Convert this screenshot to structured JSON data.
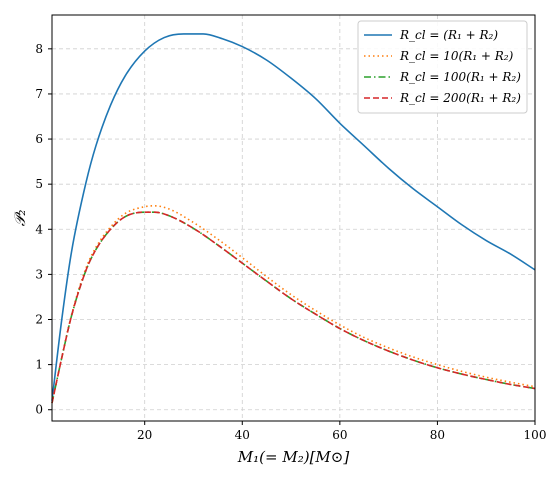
{
  "chart_data": {
    "type": "line",
    "xlabel": "M₁(= M₂)[M⊙]",
    "ylabel": "𝒫₂",
    "xlim": [
      1,
      100
    ],
    "ylim": [
      -0.25,
      8.75
    ],
    "xticks": [
      20,
      40,
      60,
      80,
      100
    ],
    "yticks": [
      0,
      1,
      2,
      3,
      4,
      5,
      6,
      7,
      8
    ],
    "grid": true,
    "grid_style": "dashed",
    "legend_position": "top-right",
    "series": [
      {
        "name": "R_cl = (R₁ + R₂)",
        "color": "#1f77b4",
        "dash": "solid",
        "x": [
          1,
          3,
          5,
          8,
          10,
          13,
          16,
          20,
          24,
          28,
          32,
          36,
          40,
          45,
          50,
          55,
          60,
          65,
          70,
          75,
          80,
          85,
          90,
          95,
          100
        ],
        "y": [
          0.2,
          2.0,
          3.5,
          5.05,
          5.85,
          6.75,
          7.4,
          7.95,
          8.25,
          8.33,
          8.33,
          8.22,
          8.05,
          7.75,
          7.35,
          6.9,
          6.35,
          5.85,
          5.35,
          4.9,
          4.5,
          4.1,
          3.75,
          3.45,
          3.1
        ]
      },
      {
        "name": "R_cl = 10(R₁ + R₂)",
        "color": "#ff7f0e",
        "dash": "dotted",
        "x": [
          1,
          3,
          5,
          8,
          10,
          13,
          16,
          20,
          22,
          25,
          30,
          35,
          40,
          45,
          50,
          55,
          60,
          65,
          70,
          75,
          80,
          85,
          90,
          95,
          100
        ],
        "y": [
          0.15,
          1.15,
          2.1,
          3.15,
          3.6,
          4.05,
          4.35,
          4.5,
          4.52,
          4.45,
          4.15,
          3.78,
          3.37,
          2.95,
          2.55,
          2.2,
          1.88,
          1.6,
          1.37,
          1.17,
          1.0,
          0.85,
          0.72,
          0.61,
          0.51
        ]
      },
      {
        "name": "R_cl = 100(R₁ + R₂)",
        "color": "#2ca02c",
        "dash": "dashdot",
        "x": [
          1,
          3,
          5,
          8,
          10,
          13,
          16,
          20,
          22,
          25,
          30,
          35,
          40,
          45,
          50,
          55,
          60,
          65,
          70,
          75,
          80,
          85,
          90,
          95,
          100
        ],
        "y": [
          0.15,
          1.15,
          2.08,
          3.1,
          3.55,
          4.0,
          4.28,
          4.38,
          4.38,
          4.3,
          4.02,
          3.65,
          3.25,
          2.85,
          2.46,
          2.12,
          1.8,
          1.53,
          1.3,
          1.1,
          0.93,
          0.79,
          0.67,
          0.56,
          0.47
        ]
      },
      {
        "name": "R_cl = 200(R₁ + R₂)",
        "color": "#d62728",
        "dash": "dashed",
        "x": [
          1,
          3,
          5,
          8,
          10,
          13,
          16,
          20,
          22,
          25,
          30,
          35,
          40,
          45,
          50,
          55,
          60,
          65,
          70,
          75,
          80,
          85,
          90,
          95,
          100
        ],
        "y": [
          0.15,
          1.15,
          2.08,
          3.1,
          3.55,
          4.0,
          4.28,
          4.38,
          4.38,
          4.3,
          4.02,
          3.65,
          3.25,
          2.85,
          2.46,
          2.12,
          1.8,
          1.53,
          1.3,
          1.1,
          0.93,
          0.79,
          0.67,
          0.56,
          0.47
        ]
      }
    ]
  }
}
